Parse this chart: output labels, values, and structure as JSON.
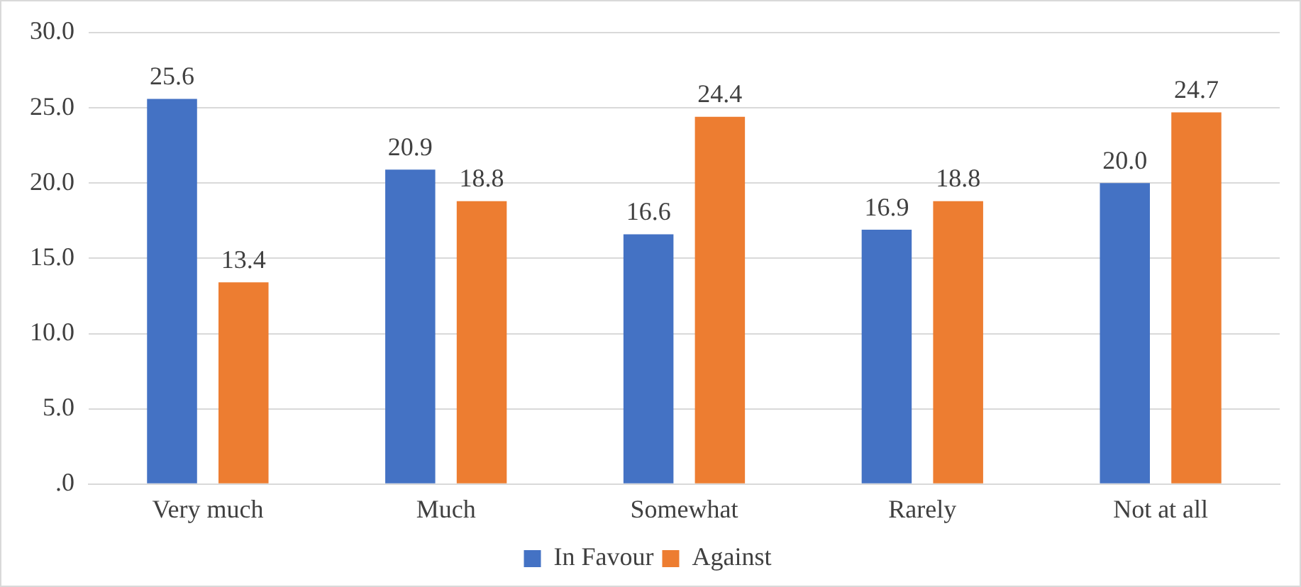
{
  "chart_data": {
    "type": "bar",
    "categories": [
      "Very much",
      "Much",
      "Somewhat",
      "Rarely",
      "Not at all"
    ],
    "series": [
      {
        "name": "In Favour",
        "color": "#4472c4",
        "values": [
          25.6,
          20.9,
          16.6,
          16.9,
          20.0
        ],
        "value_labels": [
          "25.6",
          "20.9",
          "16.6",
          "16.9",
          "20.0"
        ]
      },
      {
        "name": "Against",
        "color": "#ed7d31",
        "values": [
          13.4,
          18.8,
          24.4,
          18.8,
          24.7
        ],
        "value_labels": [
          "13.4",
          "18.8",
          "24.4",
          "18.8",
          "24.7"
        ]
      }
    ],
    "ylim": [
      0,
      30
    ],
    "yticks": [
      {
        "value": 0,
        "label": ".0"
      },
      {
        "value": 5,
        "label": "5.0"
      },
      {
        "value": 10,
        "label": "10.0"
      },
      {
        "value": 15,
        "label": "15.0"
      },
      {
        "value": 20,
        "label": "20.0"
      },
      {
        "value": 25,
        "label": "25.0"
      },
      {
        "value": 30,
        "label": "30.0"
      }
    ],
    "grid": "y",
    "legend": "bottom"
  }
}
